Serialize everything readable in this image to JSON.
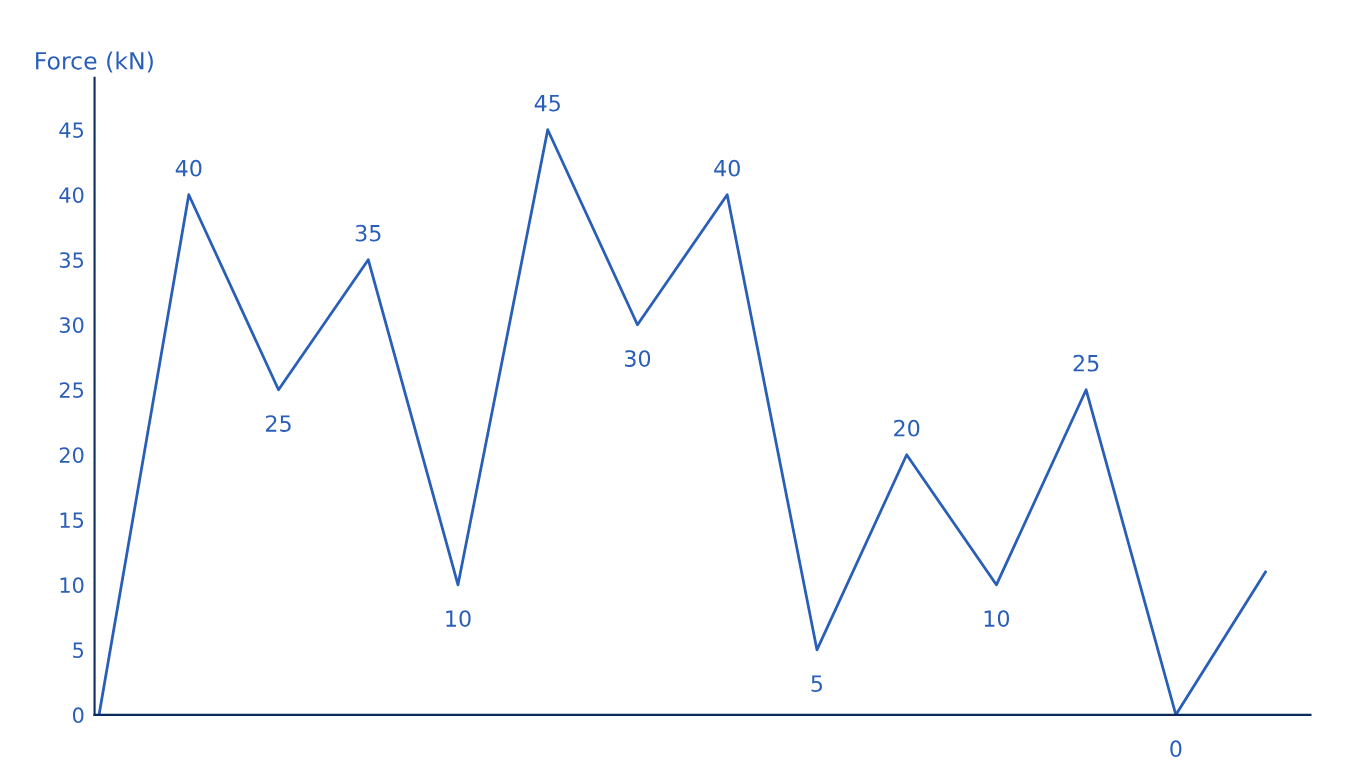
{
  "chart_data": {
    "type": "line",
    "ylabel": "Force (kN)",
    "categories": [
      null,
      null,
      null,
      null,
      null,
      null,
      null,
      null,
      null,
      null,
      null,
      null,
      null,
      null
    ],
    "series": [
      {
        "color": "#2a5fb8",
        "values": [
          0,
          40,
          25,
          35,
          10,
          45,
          30,
          40,
          5,
          20,
          10,
          25,
          0,
          11
        ],
        "value_labels": [
          null,
          "40",
          "25",
          "35",
          "10",
          "45",
          "30",
          "40",
          "5",
          "20",
          "10",
          "25",
          "0",
          null
        ]
      }
    ],
    "ylim": [
      0,
      49
    ],
    "yticks": [
      0,
      5,
      10,
      15,
      20,
      25,
      30,
      35,
      40,
      45
    ],
    "tick_labels": "y",
    "grid": false,
    "legend": false,
    "marker": "none",
    "line_style": "solid"
  }
}
